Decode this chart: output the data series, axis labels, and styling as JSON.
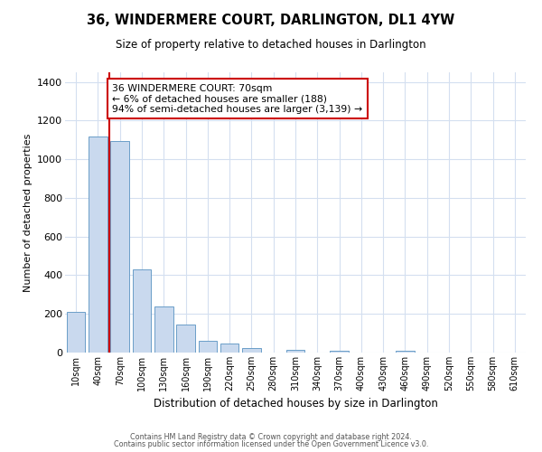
{
  "title": "36, WINDERMERE COURT, DARLINGTON, DL1 4YW",
  "subtitle": "Size of property relative to detached houses in Darlington",
  "xlabel": "Distribution of detached houses by size in Darlington",
  "ylabel": "Number of detached properties",
  "bar_labels": [
    "10sqm",
    "40sqm",
    "70sqm",
    "100sqm",
    "130sqm",
    "160sqm",
    "190sqm",
    "220sqm",
    "250sqm",
    "280sqm",
    "310sqm",
    "340sqm",
    "370sqm",
    "400sqm",
    "430sqm",
    "460sqm",
    "490sqm",
    "520sqm",
    "550sqm",
    "580sqm",
    "610sqm"
  ],
  "bar_values": [
    210,
    1120,
    1095,
    430,
    240,
    143,
    62,
    47,
    22,
    0,
    14,
    0,
    11,
    0,
    0,
    10,
    0,
    0,
    0,
    0,
    0
  ],
  "bar_color": "#c9d9ee",
  "bar_edge_color": "#6b9ec8",
  "marker_line_color": "#cc0000",
  "ylim": [
    0,
    1450
  ],
  "yticks": [
    0,
    200,
    400,
    600,
    800,
    1000,
    1200,
    1400
  ],
  "annotation_text": "36 WINDERMERE COURT: 70sqm\n← 6% of detached houses are smaller (188)\n94% of semi-detached houses are larger (3,139) →",
  "annotation_box_color": "#ffffff",
  "annotation_box_edge_color": "#cc0000",
  "footer1": "Contains HM Land Registry data © Crown copyright and database right 2024.",
  "footer2": "Contains public sector information licensed under the Open Government Licence v3.0.",
  "background_color": "#ffffff",
  "grid_color": "#d4dff0"
}
